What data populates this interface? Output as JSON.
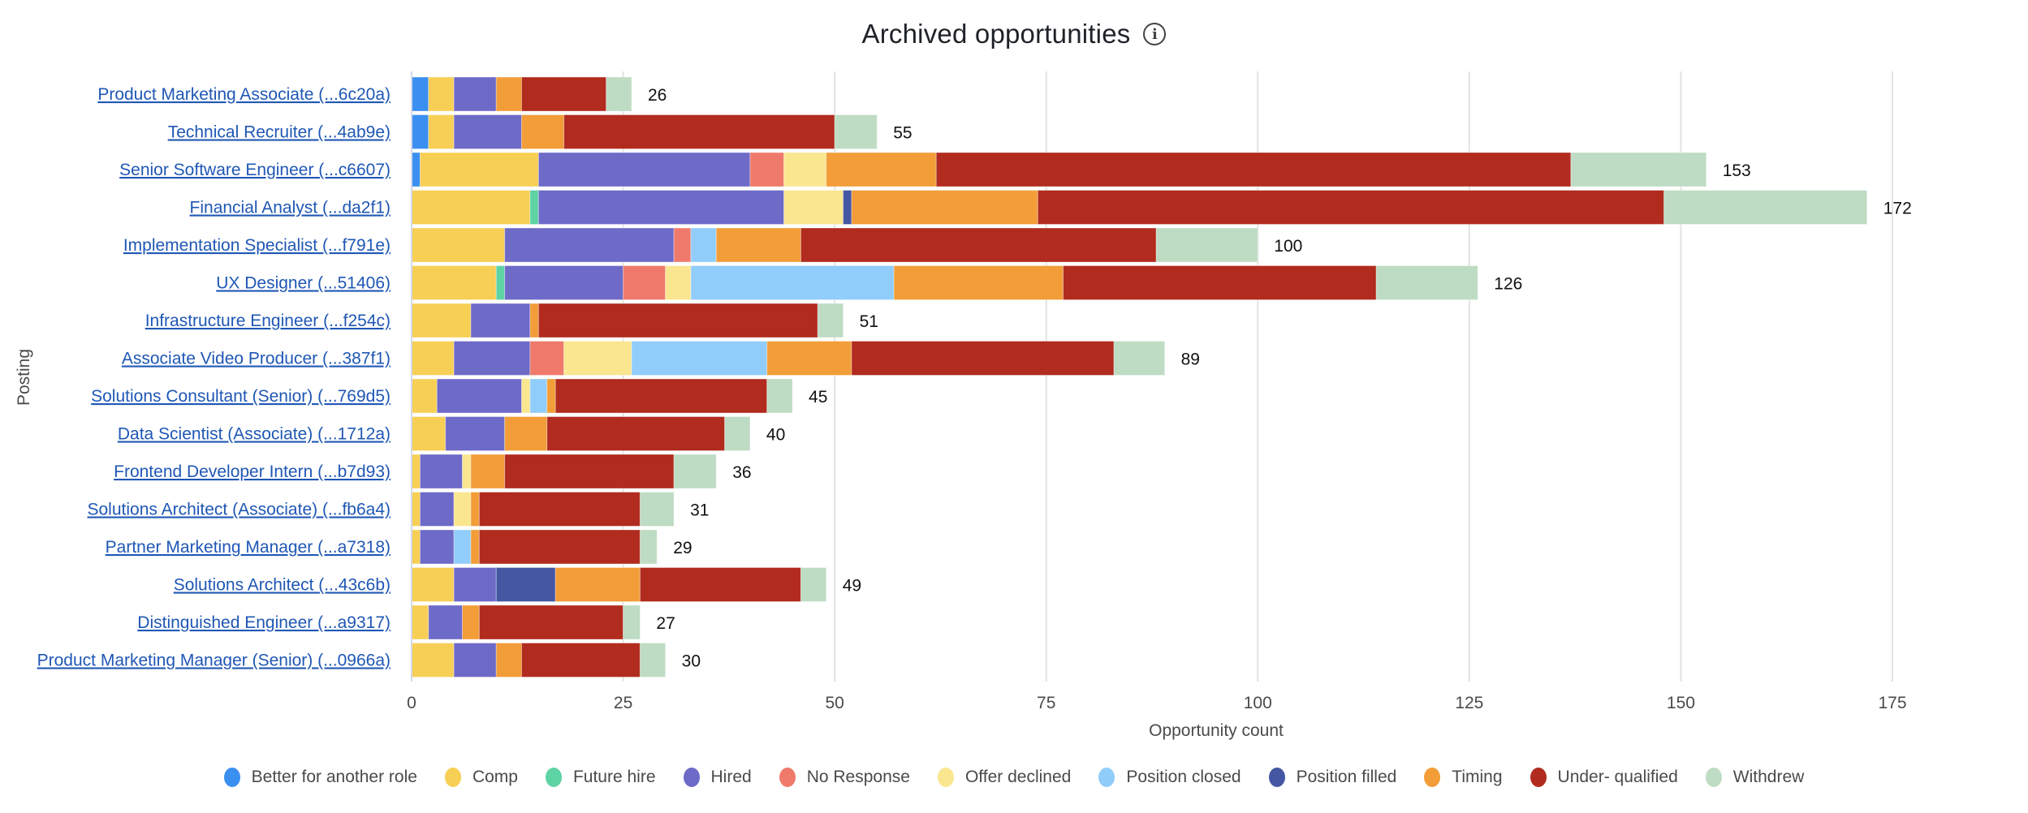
{
  "header": {
    "title": "Archived opportunities",
    "info_icon": "info-circle-icon"
  },
  "chart_data": {
    "type": "bar",
    "orientation": "horizontal",
    "stacked": true,
    "title": "Archived opportunities",
    "xlabel": "Opportunity count",
    "ylabel": "Posting",
    "xlim": [
      0,
      175
    ],
    "xticks": [
      0,
      25,
      50,
      75,
      100,
      125,
      150,
      175
    ],
    "grid": true,
    "legend_position": "bottom",
    "categories": [
      "Product Marketing Associate (...6c20a)",
      "Technical Recruiter (...4ab9e)",
      "Senior Software Engineer (...c6607)",
      "Financial Analyst (...da2f1)",
      "Implementation Specialist (...f791e)",
      "UX Designer (...51406)",
      "Infrastructure Engineer (...f254c)",
      "Associate Video Producer (...387f1)",
      "Solutions Consultant (Senior) (...769d5)",
      "Data Scientist (Associate) (...1712a)",
      "Frontend Developer Intern (...b7d93)",
      "Solutions Architect (Associate) (...fb6a4)",
      "Partner Marketing Manager (...a7318)",
      "Solutions Architect (...43c6b)",
      "Distinguished Engineer (...a9317)",
      "Product Marketing Manager (Senior) (...0966a)"
    ],
    "totals": [
      26,
      55,
      153,
      172,
      100,
      126,
      51,
      89,
      45,
      40,
      36,
      31,
      29,
      49,
      27,
      30
    ],
    "series": [
      {
        "name": "Better for another role",
        "color": "#3b8ff0",
        "values": [
          2,
          2,
          1,
          0,
          0,
          0,
          0,
          0,
          0,
          0,
          0,
          0,
          0,
          0,
          0,
          0
        ]
      },
      {
        "name": "Comp",
        "color": "#f8cf55",
        "values": [
          3,
          3,
          14,
          14,
          11,
          10,
          7,
          5,
          3,
          4,
          1,
          1,
          1,
          5,
          2,
          5
        ]
      },
      {
        "name": "Future hire",
        "color": "#5ed3a4",
        "values": [
          0,
          0,
          0,
          1,
          0,
          1,
          0,
          0,
          0,
          0,
          0,
          0,
          0,
          0,
          0,
          0
        ]
      },
      {
        "name": "Hired",
        "color": "#6e6ac8",
        "values": [
          5,
          8,
          25,
          29,
          20,
          14,
          7,
          9,
          10,
          7,
          5,
          4,
          4,
          5,
          4,
          5
        ]
      },
      {
        "name": "No Response",
        "color": "#ef7a6b",
        "values": [
          0,
          0,
          4,
          0,
          2,
          5,
          0,
          4,
          0,
          0,
          0,
          0,
          0,
          0,
          0,
          0
        ]
      },
      {
        "name": "Offer declined",
        "color": "#fae68f",
        "values": [
          0,
          0,
          5,
          7,
          0,
          3,
          0,
          8,
          1,
          0,
          1,
          2,
          0,
          0,
          0,
          0
        ]
      },
      {
        "name": "Position closed",
        "color": "#91cdfa",
        "values": [
          0,
          0,
          0,
          0,
          3,
          24,
          0,
          16,
          2,
          0,
          0,
          0,
          2,
          0,
          0,
          0
        ]
      },
      {
        "name": "Position filled",
        "color": "#4557a3",
        "values": [
          0,
          0,
          0,
          1,
          0,
          0,
          0,
          0,
          0,
          0,
          0,
          0,
          0,
          7,
          0,
          0
        ]
      },
      {
        "name": "Timing",
        "color": "#f29d38",
        "values": [
          3,
          5,
          13,
          22,
          10,
          20,
          1,
          10,
          1,
          5,
          4,
          1,
          1,
          10,
          2,
          3
        ]
      },
      {
        "name": "Under- qualified",
        "color": "#b12b1e",
        "values": [
          10,
          32,
          75,
          74,
          42,
          37,
          33,
          31,
          25,
          21,
          20,
          19,
          19,
          19,
          17,
          14
        ]
      },
      {
        "name": "Withdrew",
        "color": "#bedcc3",
        "values": [
          3,
          5,
          16,
          24,
          12,
          12,
          3,
          6,
          3,
          3,
          5,
          4,
          2,
          3,
          2,
          3
        ]
      }
    ]
  }
}
